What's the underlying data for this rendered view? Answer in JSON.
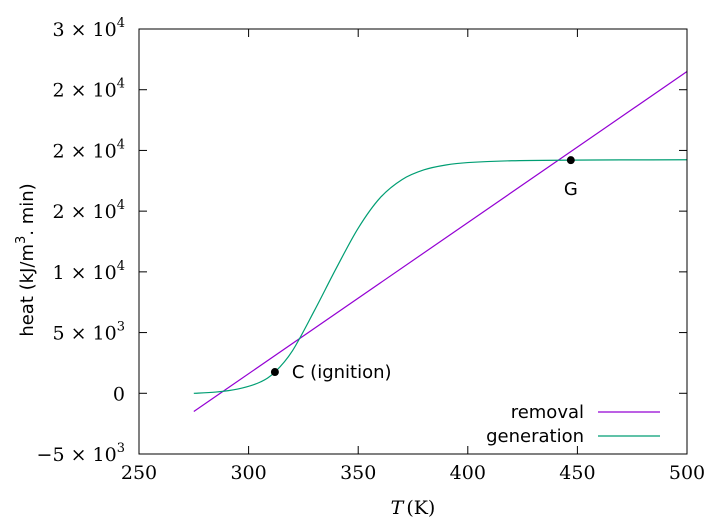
{
  "chart_data": {
    "type": "line",
    "xlabel_var": "T",
    "xlabel_unit": "(K)",
    "ylabel": "heat (kJ/m",
    "ylabel_sup": "3",
    "ylabel_tail": ". min)",
    "xlim": [
      250,
      500
    ],
    "ylim": [
      -5000,
      30000
    ],
    "x_ticks": [
      250,
      300,
      350,
      400,
      450,
      500
    ],
    "y_ticks": [
      {
        "value": 30000,
        "mant": "3 × 10",
        "exp": "4"
      },
      {
        "value": 25000,
        "mant": "2 × 10",
        "exp": "4"
      },
      {
        "value": 20000,
        "mant": "2 × 10",
        "exp": "4"
      },
      {
        "value": 15000,
        "mant": "2 × 10",
        "exp": "4"
      },
      {
        "value": 10000,
        "mant": "1 × 10",
        "exp": "4"
      },
      {
        "value": 5000,
        "mant": "5 × 10",
        "exp": "3"
      },
      {
        "value": 0,
        "mant": "0",
        "exp": ""
      },
      {
        "value": -5000,
        "mant": "−5 × 10",
        "exp": "3"
      }
    ],
    "series": [
      {
        "name": "removal",
        "color": "#9400d3",
        "points": [
          [
            275,
            -1500
          ],
          [
            500,
            26500
          ]
        ]
      },
      {
        "name": "generation",
        "color": "#009e73",
        "points": [
          [
            275,
            0
          ],
          [
            285,
            100
          ],
          [
            295,
            350
          ],
          [
            305,
            900
          ],
          [
            312,
            1750
          ],
          [
            320,
            3500
          ],
          [
            330,
            6800
          ],
          [
            340,
            10300
          ],
          [
            350,
            13600
          ],
          [
            360,
            16100
          ],
          [
            370,
            17600
          ],
          [
            380,
            18400
          ],
          [
            390,
            18800
          ],
          [
            400,
            19000
          ],
          [
            420,
            19150
          ],
          [
            447,
            19200
          ],
          [
            470,
            19220
          ],
          [
            500,
            19230
          ]
        ]
      }
    ],
    "annotations": [
      {
        "label": "C (ignition)",
        "x": 312,
        "y": 1750
      },
      {
        "label": "G",
        "x": 447,
        "y": 19200
      }
    ],
    "legend_position": "bottom-right"
  }
}
